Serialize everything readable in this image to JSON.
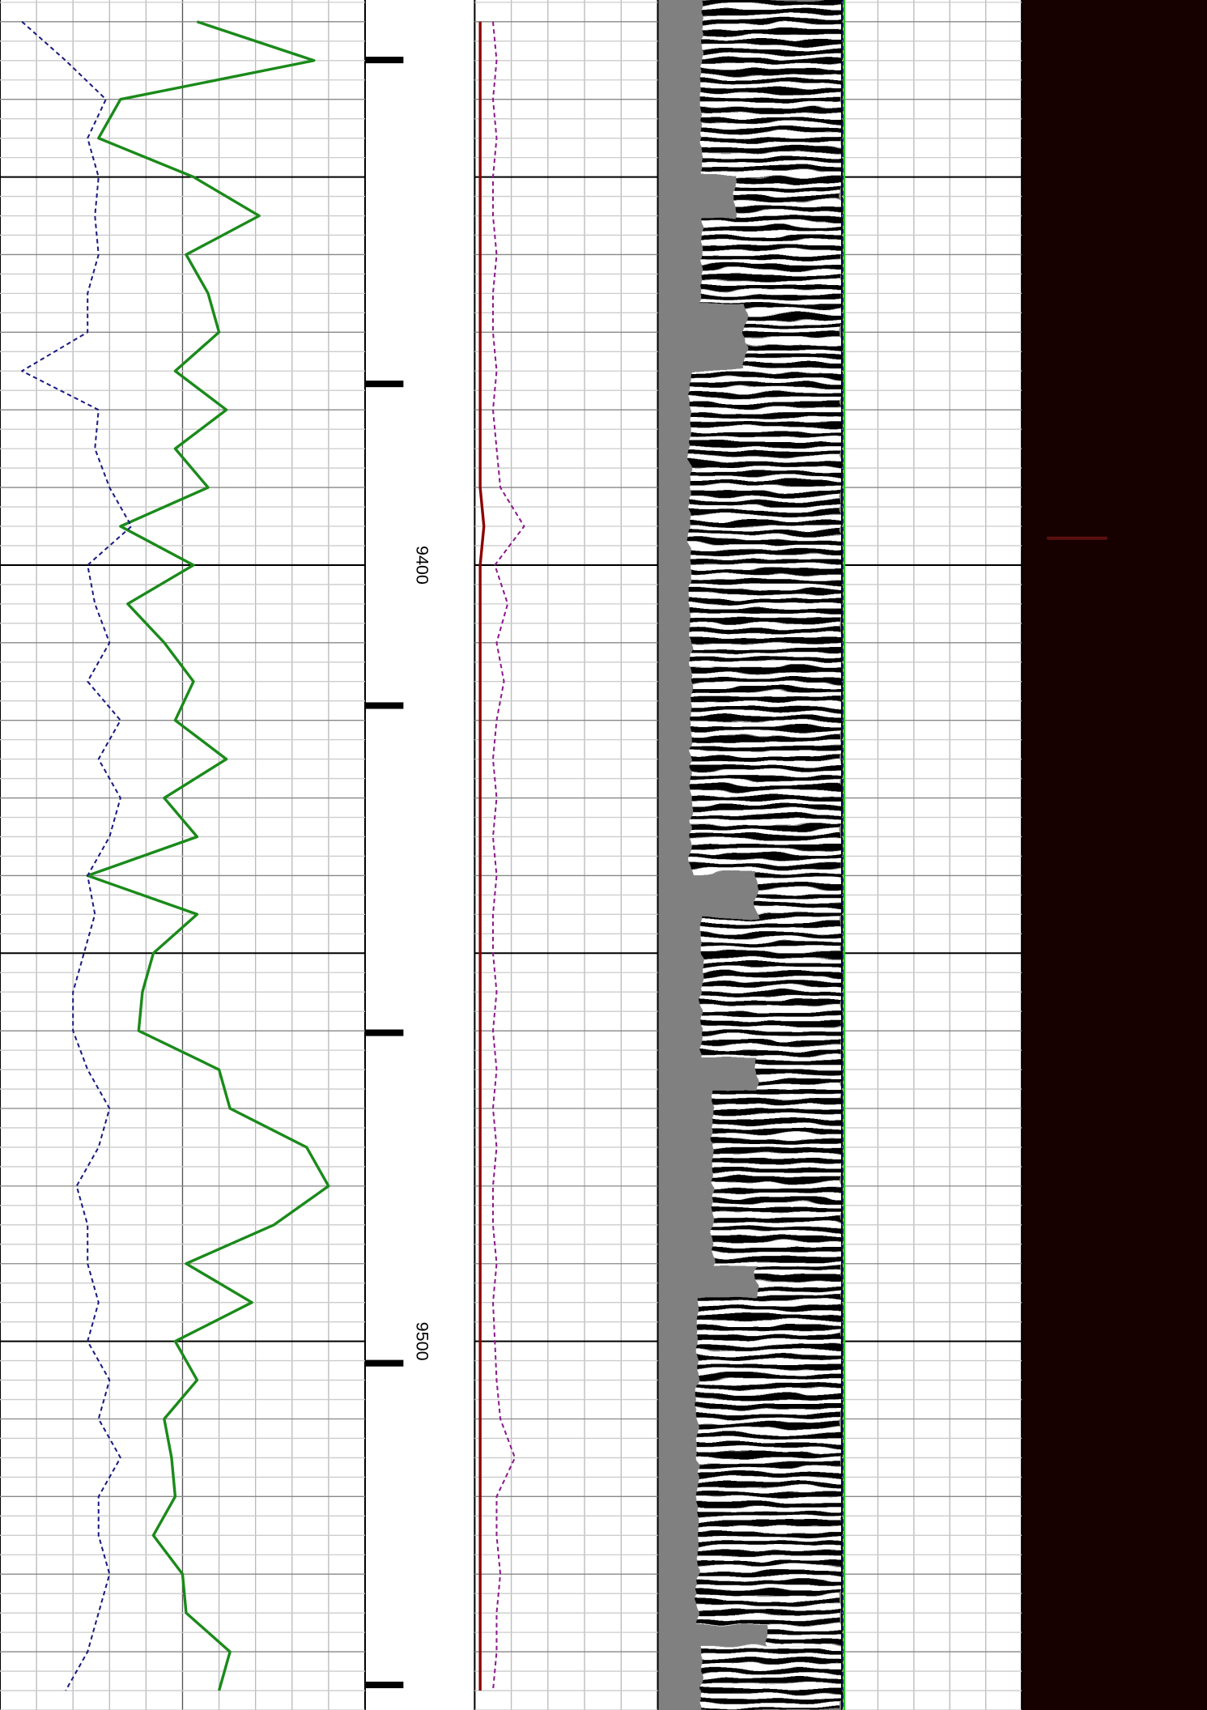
{
  "chart_data": {
    "type": "line",
    "x": [
      9330,
      9335,
      9340,
      9345,
      9350,
      9355,
      9360,
      9365,
      9370,
      9375,
      9380,
      9385,
      9390,
      9395,
      9400,
      9405,
      9410,
      9415,
      9420,
      9425,
      9430,
      9435,
      9440,
      9445,
      9450,
      9455,
      9460,
      9465,
      9470,
      9475,
      9480,
      9485,
      9490,
      9495,
      9500,
      9505,
      9510,
      9515,
      9520,
      9525,
      9530,
      9535,
      9540,
      9545
    ],
    "xlim": [
      9327.2,
      9547.5
    ],
    "xticks": [
      9400,
      9500
    ],
    "ylim": [
      0,
      10
    ],
    "y2lim": [
      0,
      5
    ],
    "series": [
      {
        "color": "#1a8a1a",
        "values": [
          5.4,
          8.6,
          3.3,
          2.7,
          5.3,
          7.1,
          5.1,
          5.7,
          6.0,
          4.8,
          6.2,
          4.8,
          5.7,
          3.3,
          5.3,
          3.5,
          4.5,
          5.3,
          4.8,
          6.2,
          4.5,
          5.4,
          2.4,
          5.4,
          4.2,
          3.9,
          3.8,
          6.0,
          6.3,
          8.4,
          9.0,
          7.5,
          5.1,
          6.9,
          4.8,
          5.4,
          4.5,
          4.7,
          4.8,
          4.2,
          5.0,
          5.1,
          6.3,
          6.0
        ]
      },
      {
        "color": "#1a1a80",
        "dashed": true,
        "values": [
          0.6,
          1.8,
          2.9,
          2.4,
          2.7,
          2.6,
          2.7,
          2.4,
          2.4,
          0.6,
          2.7,
          2.6,
          3.0,
          3.6,
          2.4,
          2.6,
          3.0,
          2.4,
          3.3,
          2.7,
          3.3,
          3.0,
          2.4,
          2.6,
          2.3,
          2.0,
          2.0,
          2.4,
          3.0,
          2.7,
          2.1,
          2.4,
          2.4,
          2.7,
          2.4,
          3.0,
          2.7,
          3.3,
          2.7,
          2.7,
          3.0,
          2.7,
          2.4,
          1.8
        ]
      },
      {
        "color": "#8b1a8b",
        "dashed": true,
        "axis": "y2",
        "values": [
          0.5,
          0.6,
          0.5,
          0.6,
          0.5,
          0.5,
          0.6,
          0.5,
          0.5,
          0.6,
          0.5,
          0.6,
          0.7,
          1.35,
          0.55,
          0.9,
          0.6,
          0.8,
          0.6,
          0.5,
          0.6,
          0.5,
          0.6,
          0.5,
          0.5,
          0.6,
          0.5,
          0.6,
          0.5,
          0.6,
          0.5,
          0.5,
          0.6,
          0.5,
          0.55,
          0.6,
          0.7,
          1.1,
          0.6,
          0.6,
          0.7,
          0.6,
          0.6,
          0.5
        ]
      },
      {
        "color": "#8b0000",
        "axis": "y2",
        "values": [
          0.15,
          0.15,
          0.15,
          0.15,
          0.15,
          0.15,
          0.15,
          0.15,
          0.15,
          0.15,
          0.15,
          0.15,
          0.15,
          0.25,
          0.15,
          0.15,
          0.15,
          0.15,
          0.15,
          0.15,
          0.15,
          0.15,
          0.15,
          0.15,
          0.15,
          0.15,
          0.15,
          0.15,
          0.15,
          0.15,
          0.15,
          0.15,
          0.15,
          0.15,
          0.15,
          0.15,
          0.15,
          0.15,
          0.15,
          0.15,
          0.15,
          0.15,
          0.15,
          0.15
        ]
      }
    ]
  }
}
